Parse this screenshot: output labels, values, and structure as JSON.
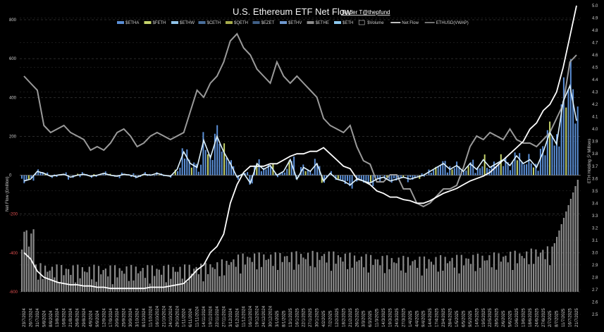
{
  "chart_data": {
    "type": "bar",
    "title": "U.S. Ethereum ETF Net Flow",
    "credit": "Trader T@thepfund",
    "ylabel_left": "Net Flow (£million)",
    "ylabel_right": "ETH Holding 少 Millions",
    "ylim_left": [
      -600,
      800
    ],
    "left_ticks": [
      "800",
      "600",
      "400",
      "200",
      "0",
      "-200",
      "-400",
      "-600"
    ],
    "left_tick_values": [
      800,
      600,
      400,
      200,
      0,
      -200,
      -400,
      -600
    ],
    "right_ticks": [
      "5.0",
      "4.9",
      "4.8",
      "4.7",
      "4.6",
      "4.5",
      "4.4",
      "4.3",
      "4.2",
      "4.1",
      "4.0",
      "3.9",
      "3.8",
      "3.7",
      "3.6",
      "3.5",
      "3.4",
      "3.3",
      "3.2",
      "3.1",
      "3.0",
      "2.9",
      "2.8",
      "2.7",
      "2.6",
      "2.5"
    ],
    "legend": [
      {
        "name": "$ETHA",
        "color": "#5b8fd6",
        "kind": "bar"
      },
      {
        "name": "$FETH",
        "color": "#c6d46b",
        "kind": "bar"
      },
      {
        "name": "$ETHW",
        "color": "#8fc3e8",
        "kind": "bar"
      },
      {
        "name": "$CETH",
        "color": "#4a6f9c",
        "kind": "bar"
      },
      {
        "name": "$QETH",
        "color": "#a7ad4c",
        "kind": "bar"
      },
      {
        "name": "$EZET",
        "color": "#3f5f86",
        "kind": "bar"
      },
      {
        "name": "$ETHV",
        "color": "#6f98cf",
        "kind": "bar"
      },
      {
        "name": "$ETHE",
        "color": "#8c8c8c",
        "kind": "bar"
      },
      {
        "name": "$ETH",
        "color": "#8cc8ee",
        "kind": "bar"
      },
      {
        "name": "$Volume",
        "color": "#000000",
        "kind": "box"
      },
      {
        "name": "Net Flow",
        "color": "#ffffff",
        "kind": "line"
      },
      {
        "name": "ETHUSD(VWAP)",
        "color": "#9a9a9a",
        "kind": "line"
      }
    ],
    "x_dates": [
      "23/7/2024",
      "26/7/2024",
      "31/7/2024",
      "5/8/2024",
      "8/8/2024",
      "13/8/2024",
      "16/8/2024",
      "21/8/2024",
      "26/8/2024",
      "29/8/2024",
      "4/9/2024",
      "9/9/2024",
      "12/9/2024",
      "17/9/2024",
      "20/9/2024",
      "25/9/2024",
      "30/9/2024",
      "3/10/2024",
      "8/10/2024",
      "11/10/2024",
      "16/10/2024",
      "21/10/2024",
      "24/10/2024",
      "29/10/2024",
      "1/11/2024",
      "6/11/2024",
      "11/11/2024",
      "14/11/2024",
      "19/11/2024",
      "22/11/2024",
      "27/11/2024",
      "3/12/2024",
      "6/12/2024",
      "11/12/2024",
      "16/12/2024",
      "19/12/2024",
      "24/12/2024",
      "30/12/2024",
      "3/1/2025",
      "8/1/2025",
      "13/1/2025",
      "16/1/2025",
      "22/1/2025",
      "27/1/2025",
      "30/1/2025",
      "4/2/2025",
      "7/2/2025",
      "12/2/2025",
      "18/2/2025",
      "21/2/2025",
      "26/2/2025",
      "3/3/2025",
      "6/3/2025",
      "11/3/2025",
      "14/3/2025",
      "19/3/2025",
      "24/3/2025",
      "27/3/2025",
      "1/4/2025",
      "4/4/2025",
      "9/4/2025",
      "14/4/2025",
      "17/4/2025",
      "23/4/2025",
      "28/4/2025",
      "1/5/2025",
      "6/5/2025",
      "9/5/2025",
      "14/5/2025",
      "19/5/2025",
      "22/5/2025",
      "28/5/2025",
      "2/6/2025",
      "5/6/2025",
      "10/6/2025",
      "13/6/2025",
      "18/6/2025",
      "24/6/2025",
      "27/6/2025",
      "2/7/2025",
      "8/7/2025",
      "11/7/2025",
      "16/7/2025",
      "21/7/2025"
    ],
    "net_flow_ma": [
      -30,
      -20,
      20,
      10,
      -5,
      0,
      5,
      -10,
      0,
      5,
      -5,
      0,
      10,
      0,
      -5,
      5,
      0,
      -10,
      5,
      0,
      10,
      0,
      -5,
      30,
      120,
      60,
      40,
      180,
      90,
      200,
      120,
      60,
      -10,
      10,
      -40,
      60,
      30,
      50,
      0,
      20,
      80,
      -20,
      40,
      20,
      60,
      -30,
      10,
      -20,
      -30,
      -50,
      -20,
      -30,
      -40,
      -20,
      -10,
      -30,
      -20,
      -10,
      -20,
      -10,
      0,
      20,
      40,
      60,
      30,
      50,
      20,
      60,
      30,
      80,
      40,
      60,
      80,
      50,
      100,
      60,
      80,
      40,
      120,
      220,
      160,
      380,
      460,
      280
    ],
    "eth_holding_millions": [
      3.0,
      2.95,
      2.85,
      2.8,
      2.78,
      2.76,
      2.75,
      2.74,
      2.74,
      2.73,
      2.73,
      2.72,
      2.72,
      2.71,
      2.71,
      2.71,
      2.71,
      2.71,
      2.71,
      2.72,
      2.72,
      2.72,
      2.73,
      2.74,
      2.75,
      2.8,
      2.86,
      2.9,
      3.0,
      3.05,
      3.15,
      3.4,
      3.55,
      3.65,
      3.7,
      3.7,
      3.7,
      3.72,
      3.72,
      3.75,
      3.78,
      3.8,
      3.8,
      3.82,
      3.82,
      3.85,
      3.8,
      3.75,
      3.7,
      3.68,
      3.6,
      3.58,
      3.55,
      3.5,
      3.48,
      3.45,
      3.45,
      3.43,
      3.42,
      3.4,
      3.4,
      3.42,
      3.45,
      3.48,
      3.5,
      3.52,
      3.55,
      3.58,
      3.6,
      3.62,
      3.65,
      3.7,
      3.75,
      3.8,
      3.85,
      3.9,
      4.0,
      4.05,
      4.15,
      4.2,
      4.3,
      4.5,
      4.75,
      5.0
    ],
    "eth_usd_vwap": [
      3400,
      3300,
      3200,
      2700,
      2600,
      2650,
      2700,
      2600,
      2550,
      2500,
      2350,
      2400,
      2350,
      2450,
      2600,
      2650,
      2550,
      2400,
      2450,
      2550,
      2600,
      2550,
      2500,
      2550,
      2600,
      2900,
      3200,
      3100,
      3300,
      3400,
      3600,
      3900,
      4000,
      3800,
      3700,
      3500,
      3400,
      3300,
      3600,
      3400,
      3300,
      3400,
      3300,
      3200,
      3100,
      2800,
      2700,
      2650,
      2600,
      2700,
      2400,
      2200,
      2150,
      1900,
      1900,
      2000,
      2000,
      1800,
      1800,
      1600,
      1550,
      1600,
      1700,
      1800,
      1800,
      1850,
      2100,
      2400,
      2550,
      2500,
      2600,
      2550,
      2500,
      2650,
      2500,
      2450,
      2450,
      2400,
      2500,
      2600,
      2800,
      3000,
      3600,
      3700
    ]
  }
}
